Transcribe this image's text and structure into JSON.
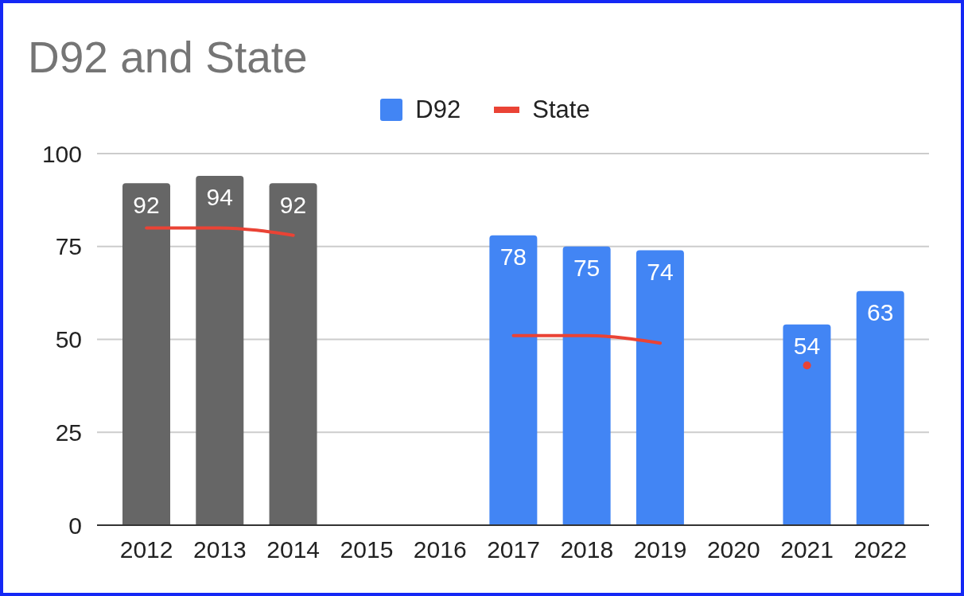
{
  "chart_data": {
    "type": "bar",
    "title": "D92 and State",
    "categories": [
      "2012",
      "2013",
      "2014",
      "2015",
      "2016",
      "2017",
      "2018",
      "2019",
      "2020",
      "2021",
      "2022"
    ],
    "series": [
      {
        "name": "D92",
        "color": "#4285f4",
        "colors": [
          "#666666",
          "#666666",
          "#666666",
          "#4285f4",
          "#4285f4",
          "#4285f4",
          "#4285f4",
          "#4285f4",
          "#4285f4",
          "#4285f4",
          "#4285f4"
        ],
        "values": [
          92,
          94,
          92,
          null,
          null,
          78,
          75,
          74,
          null,
          54,
          63
        ],
        "value_labels": [
          "92",
          "94",
          "92",
          null,
          null,
          "78",
          "75",
          "74",
          null,
          "54",
          "63"
        ]
      },
      {
        "name": "State",
        "type": "line",
        "color": "#ea4335",
        "values": [
          80,
          80,
          78,
          null,
          null,
          51,
          51,
          49,
          null,
          43,
          null
        ]
      }
    ],
    "ylim": [
      0,
      100
    ],
    "yticks": [
      0,
      25,
      50,
      75,
      100
    ],
    "grid": "y",
    "legend": "top"
  }
}
